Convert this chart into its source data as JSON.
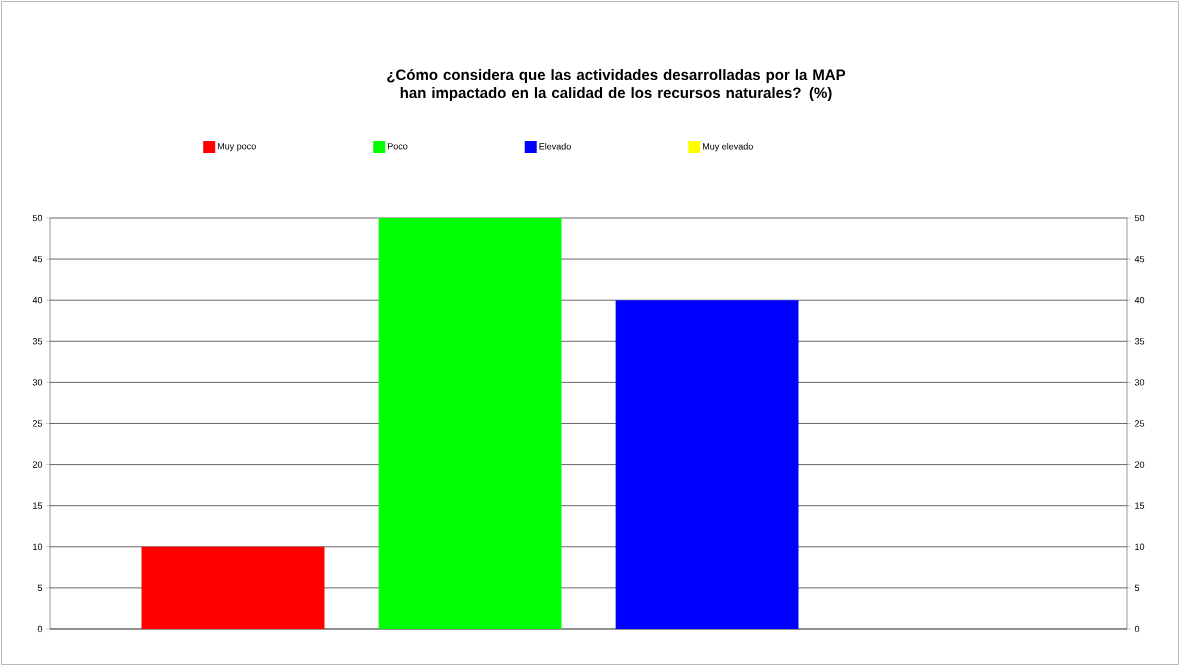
{
  "chart_data": {
    "type": "bar",
    "title": "¿Cómo considera que las actividades desarrolladas por la MAP han impactado en la calidad de los recursos naturales? (%)",
    "categories": [
      null
    ],
    "series": [
      {
        "name": "Muy poco",
        "color": "#ff0000",
        "values": [
          10
        ]
      },
      {
        "name": "Poco",
        "color": "#00ff00",
        "values": [
          50
        ]
      },
      {
        "name": "Elevado",
        "color": "#0000ff",
        "values": [
          40
        ]
      },
      {
        "name": "Muy elevado",
        "color": "#ffff00",
        "values": [
          0
        ]
      }
    ],
    "ylim": [
      0,
      50
    ],
    "yticks": [
      0,
      5,
      10,
      15,
      20,
      25,
      30,
      35,
      40,
      45,
      50
    ],
    "y2lim": [
      0,
      50
    ],
    "y2ticks": [
      0,
      5,
      10,
      15,
      20,
      25,
      30,
      35,
      40,
      45,
      50
    ],
    "grid": "y",
    "legend": "top"
  }
}
